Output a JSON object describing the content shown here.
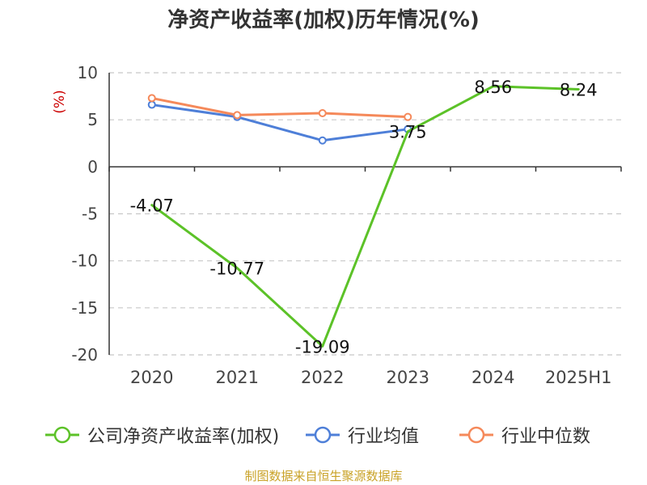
{
  "title": "净资产收益率(加权)历年情况(%)",
  "source_note": "制图数据来自恒生聚源数据库",
  "chart_data": {
    "type": "line",
    "title": "净资产收益率(加权)历年情况(%)",
    "ylabel": "(%)",
    "xlabel": "",
    "categories": [
      "2020",
      "2021",
      "2022",
      "2023",
      "2024",
      "2025H1"
    ],
    "ylim": [
      -20,
      10
    ],
    "yticks": [
      10,
      5,
      0,
      -5,
      -10,
      -15,
      -20
    ],
    "grid": true,
    "legend_position": "bottom",
    "series": [
      {
        "name": "公司净资产收益率(加权)",
        "color": "#5cc228",
        "values": [
          -4.07,
          -10.77,
          -19.09,
          3.75,
          8.56,
          8.24
        ],
        "labels": [
          "-4.07",
          "-10.77",
          "-19.09",
          "3.75",
          "8.56",
          "8.24"
        ],
        "show_labels": true,
        "show_markers": false
      },
      {
        "name": "行业均值",
        "color": "#4e7fd8",
        "values": [
          6.6,
          5.3,
          2.8,
          4.0,
          null,
          null
        ],
        "show_labels": false,
        "show_markers": true
      },
      {
        "name": "行业中位数",
        "color": "#f5895a",
        "values": [
          7.3,
          5.5,
          5.7,
          5.3,
          null,
          null
        ],
        "show_labels": false,
        "show_markers": true
      }
    ]
  }
}
